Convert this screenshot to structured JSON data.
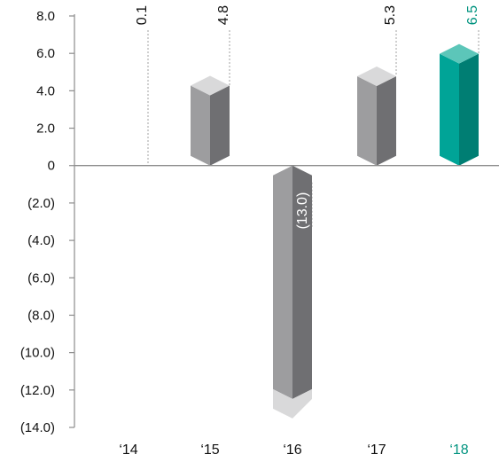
{
  "chart_data": {
    "type": "bar",
    "categories": [
      "‘14",
      "‘15",
      "‘16",
      "‘17",
      "‘18"
    ],
    "values": [
      0.1,
      4.8,
      -13.0,
      5.3,
      6.5
    ],
    "value_labels": [
      "0.1",
      "4.8",
      "(13.0)",
      "5.3",
      "6.5"
    ],
    "y_ticks": [
      8.0,
      6.0,
      4.0,
      2.0,
      0,
      -2.0,
      -4.0,
      -6.0,
      -8.0,
      -10.0,
      -12.0,
      -14.0
    ],
    "y_tick_labels": [
      "8.0",
      "6.0",
      "4.0",
      "2.0",
      "0",
      "(2.0)",
      "(4.0)",
      "(6.0)",
      "(8.0)",
      "(10.0)",
      "(12.0)",
      "(14.0)"
    ],
    "ylim": [
      -14,
      8
    ],
    "grid": false,
    "title": "",
    "xlabel": "",
    "ylabel": "",
    "highlight_index": 4,
    "colors": {
      "axis": "#8c8c8c",
      "text": "#111111",
      "bar_front": "#9d9d9f",
      "bar_side": "#6f6f72",
      "bar_cap": "#d9d9da",
      "highlight_front": "#00a497",
      "highlight_side": "#007e73",
      "highlight_cap": "#5cc6b9",
      "highlight_text": "#00937f",
      "leader": "#a0a0a0"
    }
  }
}
